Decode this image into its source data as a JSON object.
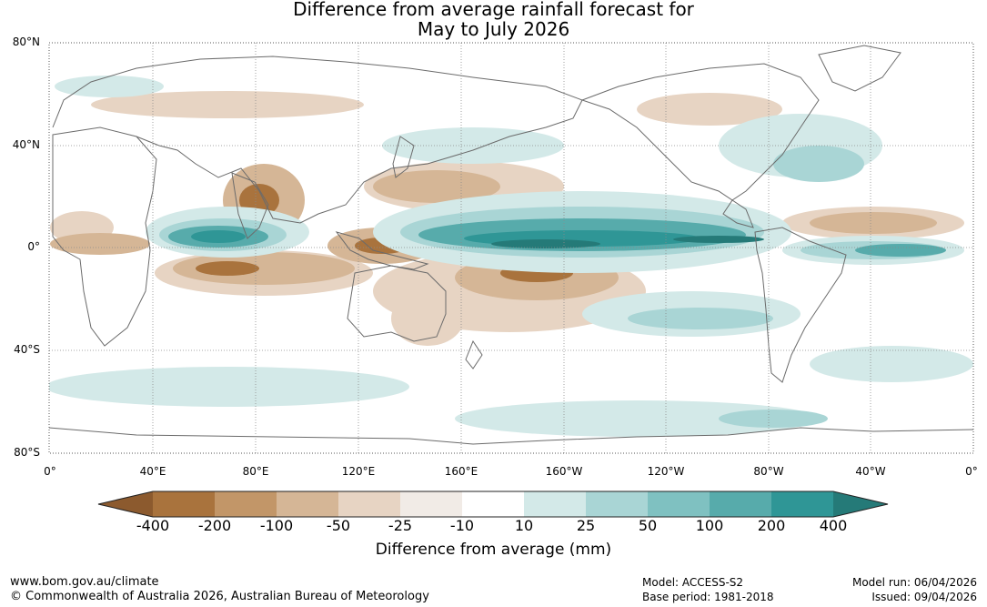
{
  "title": {
    "line1": "Difference from average rainfall forecast for",
    "line2": "May to July 2026"
  },
  "axes": {
    "lat_labels": [
      "80°N",
      "40°N",
      "0°",
      "40°S",
      "80°S"
    ],
    "lon_labels": [
      "0°",
      "40°E",
      "80°E",
      "120°E",
      "160°E",
      "160°W",
      "120°W",
      "80°W",
      "40°W",
      "0°"
    ]
  },
  "colorbar": {
    "ticks": [
      "-400",
      "-200",
      "-100",
      "-50",
      "-25",
      "-10",
      "10",
      "25",
      "50",
      "100",
      "200",
      "400"
    ],
    "colors": [
      "#8c5a2e",
      "#a9733d",
      "#c29668",
      "#d5b696",
      "#e7d4c3",
      "#f1ebe6",
      "#ffffff",
      "#d3e9e8",
      "#a9d5d5",
      "#7fc1c1",
      "#57abab",
      "#2f9696",
      "#257a78"
    ],
    "label": "Difference from average (mm)"
  },
  "footer": {
    "url": "www.bom.gov.au/climate",
    "copyright": "© Commonwealth of Australia 2026, Australian Bureau of Meteorology",
    "model": "Model: ACCESS-S2",
    "base_period": "Base period: 1981-2018",
    "model_run": "Model run: 06/04/2026",
    "issued": "Issued: 09/04/2026"
  }
}
